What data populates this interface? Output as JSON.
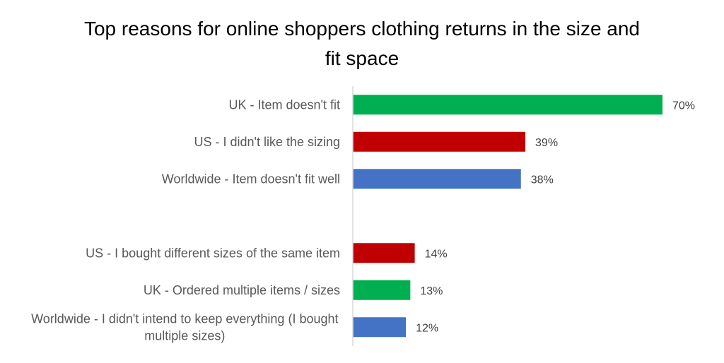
{
  "chart_data": {
    "type": "bar",
    "orientation": "horizontal",
    "title": "Top reasons for online shoppers clothing returns in the size and fit space",
    "xlabel": "",
    "ylabel": "",
    "xlim": [
      0,
      70
    ],
    "grid": false,
    "legend": "none",
    "categories": [
      "UK - Item doesn't fit",
      "US - I didn't like the sizing",
      "Worldwide - Item doesn't fit well",
      "",
      "US - I bought different sizes of the same item",
      "UK - Ordered multiple items / sizes",
      "Worldwide -  I didn't intend to keep everything (I bought multiple sizes)"
    ],
    "values": [
      70,
      39,
      38,
      null,
      14,
      13,
      12
    ],
    "data_labels": [
      "70%",
      "39%",
      "38%",
      "",
      "14%",
      "13%",
      "12%"
    ],
    "colors": [
      "#00B050",
      "#C00000",
      "#4472C4",
      "",
      "#C00000",
      "#00B050",
      "#4472C4"
    ]
  }
}
